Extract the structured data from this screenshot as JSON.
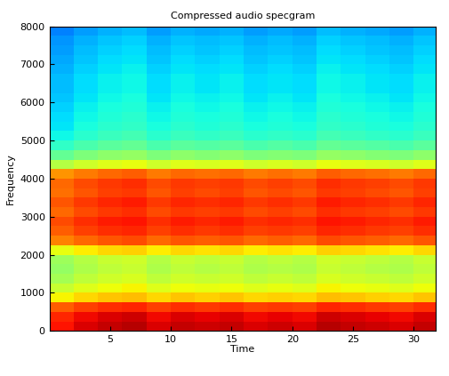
{
  "chart_data": {
    "type": "heatmap",
    "title": "Compressed audio specgram",
    "x_label": "Time",
    "y_label": "Frequency",
    "xlim": [
      0,
      31.8
    ],
    "xticks": [
      5,
      10,
      15,
      20,
      25,
      30
    ],
    "ylim": [
      0,
      8000
    ],
    "yticks": [
      0,
      1000,
      2000,
      3000,
      4000,
      5000,
      6000,
      7000,
      8000
    ],
    "color": "jet",
    "color_range": [
      0,
      100
    ],
    "time_edges": [
      0,
      2,
      4,
      6,
      8,
      10,
      12,
      14,
      16,
      18,
      20,
      22,
      24,
      26,
      28,
      30,
      32
    ],
    "frequency_edges": [
      0,
      250,
      500,
      750,
      1000,
      1250,
      1500,
      1750,
      2000,
      2250,
      2500,
      2750,
      3000,
      3250,
      3500,
      3750,
      4000,
      4250,
      4500,
      4750,
      5000,
      5250,
      5500,
      5750,
      6000,
      6250,
      6500,
      6750,
      7000,
      7250,
      7500,
      7750,
      8000
    ],
    "cells": [
      [
        89,
        92,
        94,
        95,
        92,
        94,
        93,
        94,
        92,
        93,
        92,
        95,
        94,
        93,
        92,
        94
      ],
      [
        87,
        90,
        92,
        93,
        90,
        92,
        91,
        92,
        90,
        91,
        90,
        93,
        92,
        91,
        90,
        92
      ],
      [
        81,
        84,
        86,
        87,
        84,
        86,
        85,
        86,
        84,
        85,
        84,
        87,
        86,
        85,
        84,
        86
      ],
      [
        65,
        68,
        70,
        71,
        68,
        70,
        69,
        70,
        68,
        69,
        68,
        71,
        70,
        69,
        68,
        70
      ],
      [
        59,
        62,
        64,
        65,
        62,
        64,
        63,
        64,
        62,
        63,
        62,
        65,
        64,
        63,
        62,
        64
      ],
      [
        55,
        58,
        60,
        61,
        58,
        60,
        59,
        60,
        58,
        59,
        58,
        61,
        60,
        59,
        58,
        60
      ],
      [
        53,
        56,
        58,
        59,
        56,
        58,
        57,
        58,
        56,
        57,
        56,
        59,
        58,
        57,
        56,
        58
      ],
      [
        54,
        57,
        59,
        60,
        57,
        59,
        58,
        59,
        57,
        58,
        57,
        60,
        59,
        58,
        57,
        59
      ],
      [
        63,
        66,
        68,
        69,
        66,
        68,
        67,
        68,
        66,
        67,
        66,
        69,
        68,
        67,
        66,
        68
      ],
      [
        77,
        80,
        82,
        83,
        80,
        82,
        81,
        82,
        80,
        81,
        80,
        83,
        82,
        81,
        80,
        82
      ],
      [
        81,
        84,
        86,
        87,
        84,
        86,
        85,
        86,
        84,
        85,
        84,
        87,
        86,
        85,
        84,
        86
      ],
      [
        83,
        86,
        88,
        89,
        86,
        88,
        87,
        88,
        86,
        87,
        86,
        89,
        88,
        87,
        86,
        88
      ],
      [
        80,
        83,
        85,
        86,
        83,
        85,
        84,
        85,
        83,
        84,
        83,
        86,
        85,
        84,
        83,
        85
      ],
      [
        82,
        85,
        87,
        88,
        85,
        87,
        86,
        87,
        85,
        86,
        85,
        88,
        87,
        86,
        85,
        87
      ],
      [
        79,
        82,
        84,
        85,
        82,
        84,
        83,
        84,
        82,
        83,
        82,
        85,
        84,
        83,
        82,
        84
      ],
      [
        80,
        83,
        85,
        86,
        83,
        85,
        84,
        85,
        83,
        84,
        83,
        86,
        85,
        84,
        83,
        85
      ],
      [
        75,
        78,
        80,
        81,
        78,
        80,
        79,
        80,
        78,
        79,
        78,
        81,
        80,
        79,
        78,
        80
      ],
      [
        57,
        60,
        62,
        63,
        60,
        62,
        61,
        62,
        60,
        61,
        60,
        63,
        62,
        61,
        60,
        62
      ],
      [
        47,
        50,
        52,
        53,
        50,
        52,
        51,
        52,
        50,
        51,
        50,
        53,
        52,
        51,
        50,
        52
      ],
      [
        41,
        44,
        46,
        47,
        44,
        46,
        45,
        46,
        44,
        45,
        44,
        47,
        46,
        45,
        44,
        46
      ],
      [
        37,
        40,
        42,
        43,
        40,
        42,
        41,
        42,
        40,
        41,
        40,
        43,
        42,
        41,
        40,
        42
      ],
      [
        35,
        38,
        40,
        41,
        38,
        40,
        39,
        40,
        38,
        39,
        38,
        41,
        40,
        39,
        38,
        40
      ],
      [
        34,
        37,
        39,
        40,
        37,
        39,
        38,
        39,
        37,
        38,
        37,
        40,
        39,
        38,
        37,
        39
      ],
      [
        33,
        36,
        38,
        39,
        36,
        38,
        37,
        38,
        36,
        37,
        36,
        39,
        38,
        37,
        36,
        38
      ],
      [
        32,
        35,
        37,
        38,
        35,
        37,
        36,
        37,
        35,
        36,
        35,
        38,
        37,
        36,
        35,
        37
      ],
      [
        31,
        34,
        36,
        37,
        34,
        36,
        35,
        36,
        34,
        35,
        34,
        37,
        36,
        35,
        34,
        36
      ],
      [
        31,
        34,
        36,
        37,
        34,
        36,
        35,
        36,
        34,
        35,
        34,
        37,
        36,
        35,
        34,
        36
      ],
      [
        30,
        33,
        35,
        36,
        33,
        35,
        34,
        35,
        33,
        34,
        33,
        36,
        35,
        34,
        33,
        35
      ],
      [
        29,
        32,
        34,
        35,
        32,
        34,
        33,
        34,
        32,
        33,
        32,
        35,
        34,
        33,
        32,
        34
      ],
      [
        28,
        31,
        33,
        34,
        31,
        33,
        32,
        33,
        31,
        32,
        31,
        34,
        33,
        32,
        31,
        33
      ],
      [
        27,
        30,
        32,
        33,
        30,
        32,
        31,
        32,
        30,
        31,
        30,
        33,
        32,
        31,
        30,
        32
      ],
      [
        25,
        28,
        30,
        31,
        28,
        30,
        29,
        30,
        28,
        29,
        28,
        31,
        30,
        29,
        28,
        30
      ]
    ]
  }
}
